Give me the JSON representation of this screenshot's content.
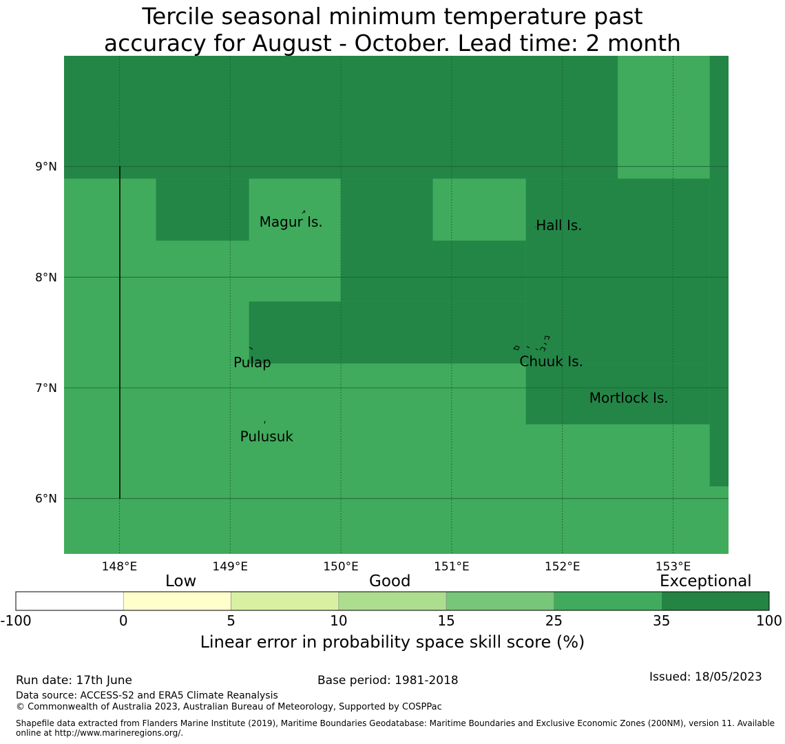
{
  "title_line1": "Tercile seasonal minimum temperature past",
  "title_line2": "accuracy for August - October. Lead time: 2 month",
  "colors": {
    "dark": "#238647",
    "medium": "#40ab5c",
    "colorbar": [
      "#ffffff",
      "#ffffcc",
      "#d9f0a3",
      "#addd8e",
      "#78c679",
      "#41ab5d",
      "#238443"
    ]
  },
  "map": {
    "lon_range": [
      147.5,
      153.5
    ],
    "lat_range": [
      5.5,
      10.0
    ],
    "x_ticks": [
      "148°E",
      "149°E",
      "150°E",
      "151°E",
      "152°E",
      "153°E"
    ],
    "y_ticks": [
      "9°N",
      "8°N",
      "7°N",
      "6°N"
    ],
    "grid_cells": [
      {
        "lon0": 147.5,
        "lon1": 153.5,
        "lat0": 5.5,
        "lat1": 10.0,
        "cls": "medium"
      },
      {
        "lon0": 147.5,
        "lon1": 152.5,
        "lat0": 8.89,
        "lat1": 10.0,
        "cls": "dark"
      },
      {
        "lon0": 153.33,
        "lon1": 153.5,
        "lat0": 6.11,
        "lat1": 10.0,
        "cls": "dark"
      },
      {
        "lon0": 148.33,
        "lon1": 149.17,
        "lat0": 8.33,
        "lat1": 8.89,
        "cls": "dark"
      },
      {
        "lon0": 150.0,
        "lon1": 150.83,
        "lat0": 7.78,
        "lat1": 8.89,
        "cls": "dark"
      },
      {
        "lon0": 150.83,
        "lon1": 151.67,
        "lat0": 7.78,
        "lat1": 8.33,
        "cls": "dark"
      },
      {
        "lon0": 151.67,
        "lon1": 153.33,
        "lat0": 7.22,
        "lat1": 8.89,
        "cls": "dark"
      },
      {
        "lon0": 149.17,
        "lon1": 151.67,
        "lat0": 7.22,
        "lat1": 7.78,
        "cls": "dark"
      },
      {
        "lon0": 151.67,
        "lon1": 153.33,
        "lat0": 6.67,
        "lat1": 7.22,
        "cls": "dark"
      }
    ],
    "islands": [
      {
        "name": "Magur Is.",
        "lon": 149.55,
        "lat": 8.5
      },
      {
        "name": "Hall Is.",
        "lon": 151.97,
        "lat": 8.47
      },
      {
        "name": "Pulap",
        "lon": 149.2,
        "lat": 7.23
      },
      {
        "name": "Chuuk Is.",
        "lon": 151.9,
        "lat": 7.24
      },
      {
        "name": "Mortlock Is.",
        "lon": 152.6,
        "lat": 6.91
      },
      {
        "name": "Pulusuk",
        "lon": 149.33,
        "lat": 6.56
      }
    ]
  },
  "colorbar": {
    "category_labels": [
      "Low",
      "Good",
      "Exceptional"
    ],
    "tick_labels": [
      "-100",
      "0",
      "5",
      "10",
      "15",
      "25",
      "35",
      "100"
    ],
    "label": "Linear error in probability space skill score (%)"
  },
  "footer": {
    "run_date": "Run date: 17th June",
    "base_period": "Base period: 1981-2018",
    "issued": "Issued: 18/05/2023",
    "data_source": "Data source: ACCESS-S2 and ERA5 Climate Reanalysis",
    "copyright": "© Commonwealth of Australia 2023, Australian Bureau of Meteorology, Supported by COSPPac",
    "shapefile": "Shapefile data extracted from Flanders Marine Institute (2019), Maritime Boundaries Geodatabase: Maritime Boundaries and Exclusive Economic Zones (200NM), version 11. Available online at http://www.marineregions.org/."
  }
}
